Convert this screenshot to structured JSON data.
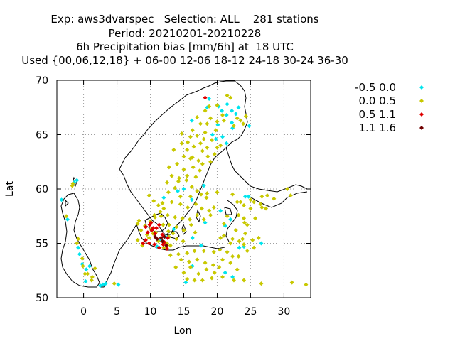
{
  "title_lines": [
    "Exp: aws3dvarspec   Selection: ALL    281 stations",
    "Period: 20210201-20210228",
    "6h Precipitation bias [mm/6h] at  18 UTC",
    "Used {00,06,12,18} + 06-00 12-06 18-12 24-18 30-24 36-30"
  ],
  "chart_data": {
    "type": "scatter",
    "xlabel": "Lon",
    "ylabel": "Lat",
    "xlim": [
      -4,
      34
    ],
    "ylim": [
      50,
      70
    ],
    "xticks": [
      0,
      5,
      10,
      15,
      20,
      25,
      30
    ],
    "yticks": [
      50,
      55,
      60,
      65,
      70
    ],
    "grid": true,
    "legend_position": "right",
    "series": [
      {
        "name": "-0.5 0.0",
        "color": "#00e5ee",
        "points": [
          [
            20.2,
            67.6
          ],
          [
            20.7,
            67.2
          ],
          [
            21.4,
            66.8
          ],
          [
            21.5,
            67.8
          ],
          [
            22.2,
            67.2
          ],
          [
            22.8,
            66.9
          ],
          [
            23.2,
            67.5
          ],
          [
            22.2,
            66.1
          ],
          [
            20.1,
            65.9
          ],
          [
            19.3,
            65.0
          ],
          [
            19.8,
            64.6
          ],
          [
            20.8,
            64.8
          ],
          [
            21.4,
            64.2
          ],
          [
            22.3,
            65.6
          ],
          [
            24.8,
            65.8
          ],
          [
            18.8,
            68.3
          ],
          [
            18.5,
            67.5
          ],
          [
            16.2,
            66.3
          ],
          [
            12.0,
            59.2
          ],
          [
            15.0,
            60.0
          ],
          [
            16.2,
            59.0
          ],
          [
            18.0,
            60.3
          ],
          [
            20.5,
            58.0
          ],
          [
            22.0,
            57.2
          ],
          [
            18.2,
            56.9
          ],
          [
            13.5,
            56.3
          ],
          [
            16.3,
            55.5
          ],
          [
            17.6,
            54.8
          ],
          [
            24.2,
            59.3
          ],
          [
            24.7,
            59.3
          ],
          [
            24.0,
            54.7
          ],
          [
            23.3,
            54.6
          ],
          [
            21.2,
            52.3
          ],
          [
            22.3,
            51.9
          ],
          [
            16.3,
            52.9
          ],
          [
            15.3,
            51.4
          ],
          [
            26.6,
            55.0
          ],
          [
            -1.4,
            60.6
          ],
          [
            -1.0,
            60.8
          ],
          [
            -3.3,
            59.0
          ],
          [
            -2.4,
            57.2
          ],
          [
            -0.8,
            54.6
          ],
          [
            -0.6,
            54.0
          ],
          [
            -0.2,
            53.1
          ],
          [
            0.4,
            52.6
          ],
          [
            0.9,
            52.9
          ],
          [
            0.3,
            51.5
          ],
          [
            2.5,
            51.1
          ],
          [
            2.9,
            51.2
          ],
          [
            3.3,
            51.3
          ],
          [
            5.2,
            51.2
          ],
          [
            11.0,
            54.7
          ],
          [
            11.6,
            55.3
          ],
          [
            12.3,
            55.6
          ],
          [
            14.1,
            59.8
          ],
          [
            21.2,
            56.6
          ]
        ]
      },
      {
        "name": "0.0 0.5",
        "color": "#c8c800",
        "points": [
          [
            18.2,
            67.2
          ],
          [
            18.8,
            67.6
          ],
          [
            20.0,
            67.7
          ],
          [
            21.5,
            68.6
          ],
          [
            22.0,
            68.4
          ],
          [
            19.0,
            66.5
          ],
          [
            20.0,
            66.2
          ],
          [
            21.0,
            66.3
          ],
          [
            23.0,
            66.5
          ],
          [
            23.9,
            66.0
          ],
          [
            17.5,
            66.0
          ],
          [
            18.2,
            65.2
          ],
          [
            16.3,
            65.4
          ],
          [
            17.0,
            64.9
          ],
          [
            19.2,
            64.5
          ],
          [
            20.5,
            64.0
          ],
          [
            16.0,
            64.8
          ],
          [
            14.7,
            64.2
          ],
          [
            13.5,
            63.6
          ],
          [
            15.5,
            63.6
          ],
          [
            16.5,
            63.9
          ],
          [
            17.8,
            63.5
          ],
          [
            18.5,
            63.8
          ],
          [
            19.6,
            63.2
          ],
          [
            15.0,
            63.0
          ],
          [
            16.0,
            62.8
          ],
          [
            17.2,
            62.6
          ],
          [
            12.8,
            62.0
          ],
          [
            14.0,
            62.3
          ],
          [
            15.0,
            61.8
          ],
          [
            16.4,
            62.0
          ],
          [
            17.4,
            61.7
          ],
          [
            13.2,
            61.2
          ],
          [
            14.3,
            61.0
          ],
          [
            15.4,
            60.8
          ],
          [
            16.8,
            61.1
          ],
          [
            12.5,
            60.6
          ],
          [
            13.7,
            60.1
          ],
          [
            16.2,
            60.2
          ],
          [
            17.0,
            59.8
          ],
          [
            18.5,
            59.6
          ],
          [
            11.2,
            58.5
          ],
          [
            12.0,
            58.2
          ],
          [
            13.2,
            58.8
          ],
          [
            14.5,
            58.6
          ],
          [
            15.6,
            58.3
          ],
          [
            16.8,
            58.6
          ],
          [
            17.7,
            58.2
          ],
          [
            11.6,
            57.5
          ],
          [
            12.6,
            57.6
          ],
          [
            13.7,
            57.4
          ],
          [
            14.8,
            57.3
          ],
          [
            15.9,
            57.2
          ],
          [
            17.0,
            57.6
          ],
          [
            18.8,
            58.0
          ],
          [
            18.0,
            57.2
          ],
          [
            12.8,
            56.7
          ],
          [
            13.9,
            56.5
          ],
          [
            15.0,
            56.2
          ],
          [
            16.1,
            56.7
          ],
          [
            16.7,
            56.0
          ],
          [
            12.8,
            55.6
          ],
          [
            13.9,
            55.4
          ],
          [
            14.9,
            55.2
          ],
          [
            10.0,
            57.0
          ],
          [
            9.2,
            56.6
          ],
          [
            8.6,
            56.2
          ],
          [
            9.8,
            55.5
          ],
          [
            10.4,
            55.9
          ],
          [
            8.1,
            55.3
          ],
          [
            8.8,
            54.8
          ],
          [
            11.2,
            55.2
          ],
          [
            12.0,
            54.6
          ],
          [
            8.3,
            57.1
          ],
          [
            10.6,
            57.6
          ],
          [
            10.1,
            56.3
          ],
          [
            8.1,
            56.8
          ],
          [
            9.5,
            55.8
          ],
          [
            10.8,
            56.0
          ],
          [
            12.5,
            55.0
          ],
          [
            13.0,
            54.8
          ],
          [
            14.2,
            54.0
          ],
          [
            15.5,
            54.1
          ],
          [
            16.6,
            54.3
          ],
          [
            18.0,
            54.3
          ],
          [
            19.5,
            54.2
          ],
          [
            20.4,
            54.4
          ],
          [
            21.5,
            54.2
          ],
          [
            22.3,
            53.8
          ],
          [
            23.2,
            53.8
          ],
          [
            14.6,
            53.5
          ],
          [
            15.8,
            53.3
          ],
          [
            17.0,
            53.5
          ],
          [
            18.2,
            53.2
          ],
          [
            19.4,
            53.0
          ],
          [
            20.8,
            53.5
          ],
          [
            13.8,
            52.8
          ],
          [
            15.0,
            52.3
          ],
          [
            16.0,
            52.8
          ],
          [
            17.2,
            52.2
          ],
          [
            18.4,
            52.6
          ],
          [
            19.6,
            52.3
          ],
          [
            20.3,
            52.8
          ],
          [
            22.0,
            53.2
          ],
          [
            23.0,
            52.6
          ],
          [
            15.5,
            51.7
          ],
          [
            16.6,
            51.6
          ],
          [
            17.8,
            51.6
          ],
          [
            19.2,
            51.8
          ],
          [
            20.8,
            51.9
          ],
          [
            22.5,
            51.6
          ],
          [
            24.0,
            51.6
          ],
          [
            26.6,
            51.3
          ],
          [
            31.2,
            51.4
          ],
          [
            33.3,
            51.2
          ],
          [
            21.0,
            55.7
          ],
          [
            22.3,
            55.4
          ],
          [
            23.3,
            55.2
          ],
          [
            24.2,
            55.9
          ],
          [
            25.3,
            55.3
          ],
          [
            26.2,
            55.5
          ],
          [
            21.0,
            56.8
          ],
          [
            22.8,
            56.2
          ],
          [
            24.5,
            56.7
          ],
          [
            23.8,
            55.4
          ],
          [
            21.5,
            57.5
          ],
          [
            24.1,
            56.9
          ],
          [
            23.2,
            57.6
          ],
          [
            25.7,
            57.3
          ],
          [
            24.0,
            57.3
          ],
          [
            26.7,
            58.3
          ],
          [
            25.0,
            58.2
          ],
          [
            23.5,
            58.8
          ],
          [
            26.5,
            58.6
          ],
          [
            27.3,
            58.2
          ],
          [
            25.5,
            58.8
          ],
          [
            26.7,
            59.3
          ],
          [
            27.5,
            59.4
          ],
          [
            28.5,
            59.1
          ],
          [
            23.0,
            58.8
          ],
          [
            24.0,
            58.5
          ],
          [
            30.5,
            60.0
          ],
          [
            31.0,
            59.4
          ],
          [
            25.0,
            59.0
          ],
          [
            22.3,
            59.5
          ],
          [
            20.0,
            59.7
          ],
          [
            19.5,
            58.3
          ],
          [
            19.0,
            57.6
          ],
          [
            18.4,
            59.2
          ],
          [
            13.0,
            53.9
          ],
          [
            24.0,
            54.9
          ],
          [
            20.5,
            55.5
          ],
          [
            22.0,
            55.0
          ],
          [
            24.5,
            54.3
          ],
          [
            25.5,
            54.6
          ],
          [
            1.7,
            52.7
          ],
          [
            0.6,
            52.2
          ],
          [
            1.3,
            51.9
          ],
          [
            0.2,
            52.2
          ],
          [
            -0.2,
            53.6
          ],
          [
            -1.0,
            55.0
          ],
          [
            -0.8,
            55.4
          ],
          [
            -1.7,
            60.3
          ],
          [
            -1.6,
            60.5
          ],
          [
            4.6,
            51.3
          ],
          [
            -0.1,
            52.9
          ],
          [
            1.2,
            51.6
          ],
          [
            -2.6,
            57.5
          ],
          [
            12.7,
            56.1
          ],
          [
            13.4,
            55.9
          ],
          [
            11.9,
            56.7
          ],
          [
            10.7,
            57.4
          ],
          [
            11.5,
            57.9
          ],
          [
            11.8,
            58.7
          ],
          [
            10.5,
            58.9
          ],
          [
            9.8,
            59.4
          ],
          [
            12.7,
            59.7
          ],
          [
            14.5,
            59.3
          ],
          [
            16.0,
            59.3
          ],
          [
            17.6,
            59.5
          ],
          [
            14.2,
            60.7
          ],
          [
            15.5,
            61.2
          ],
          [
            16.3,
            62.9
          ],
          [
            17.8,
            62.3
          ],
          [
            19.0,
            62.5
          ],
          [
            18.6,
            63.0
          ],
          [
            20.0,
            63.8
          ],
          [
            17.5,
            64.2
          ],
          [
            15.6,
            64.3
          ],
          [
            14.7,
            65.1
          ],
          [
            18.0,
            64.6
          ],
          [
            19.8,
            65.4
          ],
          [
            20.8,
            66.8
          ],
          [
            22.5,
            65.8
          ],
          [
            23.5,
            66.3
          ],
          [
            24.3,
            66.7
          ],
          [
            18.5,
            66.0
          ],
          [
            17.0,
            66.6
          ]
        ]
      },
      {
        "name": "0.5 1.1",
        "color": "#e00000",
        "points": [
          [
            18.2,
            68.4
          ],
          [
            11.3,
            56.7
          ],
          [
            10.4,
            56.4
          ],
          [
            9.6,
            56.0
          ],
          [
            10.2,
            56.2
          ],
          [
            10.7,
            55.9
          ],
          [
            11.8,
            55.8
          ],
          [
            12.6,
            55.5
          ],
          [
            9.8,
            55.0
          ],
          [
            10.6,
            54.9
          ],
          [
            11.9,
            54.9
          ],
          [
            12.1,
            55.1
          ],
          [
            9.3,
            55.3
          ],
          [
            8.9,
            55.0
          ],
          [
            10.9,
            56.4
          ],
          [
            9.3,
            56.5
          ],
          [
            9.9,
            56.7
          ],
          [
            10.1,
            56.9
          ],
          [
            12.5,
            54.5
          ],
          [
            11.3,
            54.6
          ]
        ]
      },
      {
        "name": "1.1 1.6",
        "color": "#700000",
        "points": [
          [
            11.0,
            55.4
          ],
          [
            11.8,
            55.2
          ],
          [
            12.4,
            54.8
          ],
          [
            10.7,
            55.6
          ],
          [
            11.6,
            55.5
          ],
          [
            12.1,
            55.6
          ]
        ]
      }
    ]
  }
}
